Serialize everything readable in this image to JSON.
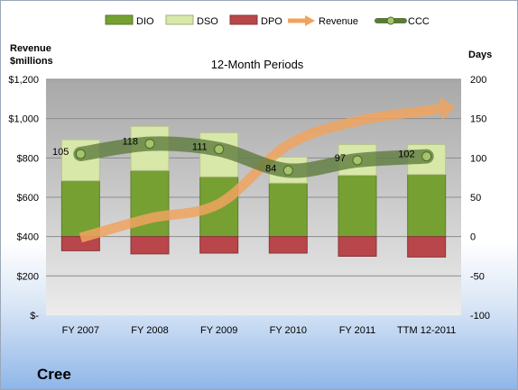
{
  "company": "Cree",
  "chart_data": {
    "type": "bar",
    "title": "12-Month Periods",
    "left_axis_label": [
      "Revenue",
      "$millions"
    ],
    "right_axis_label": "Days",
    "categories": [
      "FY 2007",
      "FY 2008",
      "FY 2009",
      "FY 2010",
      "FY 2011",
      "TTM 12-2011"
    ],
    "left_ticks": [
      "$-",
      "$200",
      "$400",
      "$600",
      "$800",
      "$1,000",
      "$1,200"
    ],
    "right_ticks": [
      "-100",
      "-50",
      "0",
      "50",
      "100",
      "150",
      "200"
    ],
    "ylim_left": [
      0,
      1200
    ],
    "ylim_right": [
      -100,
      200
    ],
    "grid": true,
    "legend_position": "top",
    "series": [
      {
        "name": "DIO",
        "kind": "stacked-bar",
        "color": "#77a033",
        "values": [
          71,
          84,
          76,
          68,
          78,
          79
        ]
      },
      {
        "name": "DSO",
        "kind": "stacked-bar",
        "color": "#d8e8a8",
        "values": [
          52,
          56,
          56,
          33,
          39,
          38
        ]
      },
      {
        "name": "DPO",
        "kind": "negative-bar",
        "color": "#b8464a",
        "values": [
          -18,
          -22,
          -21,
          -21,
          -25,
          -26
        ]
      },
      {
        "name": "Revenue",
        "kind": "arrow-line",
        "color": "#f0a35f",
        "values": [
          394,
          493,
          567,
          867,
          988,
          1040
        ]
      },
      {
        "name": "CCC",
        "kind": "line",
        "color": "#5b7a3a",
        "values": [
          105,
          118,
          111,
          84,
          97,
          102
        ],
        "labels": [
          "105",
          "118",
          "111",
          "84",
          "97",
          "102"
        ]
      }
    ]
  }
}
